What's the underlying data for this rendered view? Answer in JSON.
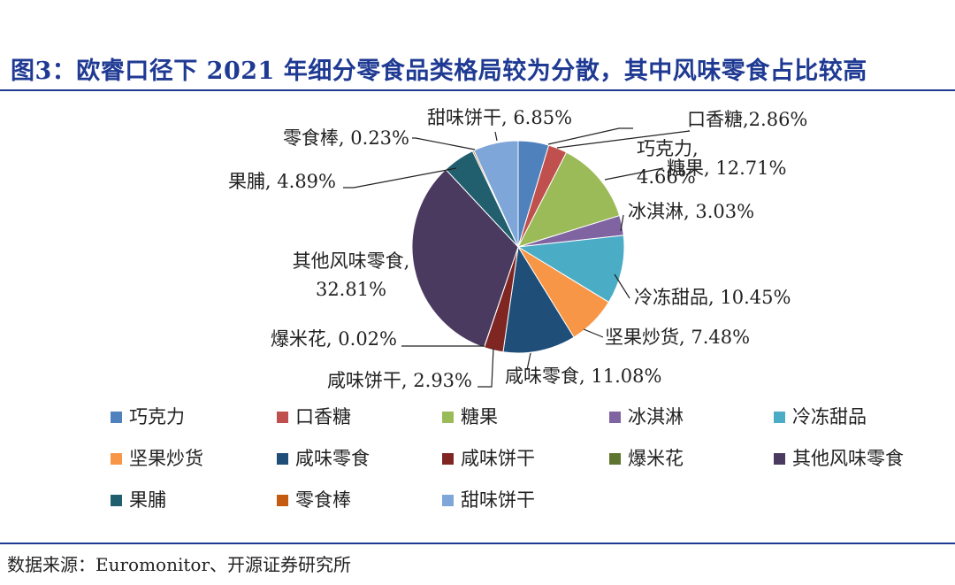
{
  "header": {
    "title": "图3：欧睿口径下 2021 年细分零食品类格局较为分散，其中风味零食占比较高"
  },
  "footer": {
    "source": "数据来源：Euromonitor、开源证券研究所"
  },
  "chart_data": {
    "type": "pie",
    "categories": [
      "巧克力",
      "口香糖",
      "糖果",
      "冰淇淋",
      "冷冻甜品",
      "坚果炒货",
      "咸味零食",
      "咸味饼干",
      "爆米花",
      "其他风味零食",
      "果脯",
      "零食棒",
      "甜味饼干"
    ],
    "values": [
      4.66,
      2.86,
      12.71,
      3.03,
      10.45,
      7.48,
      11.08,
      2.93,
      0.02,
      32.81,
      4.89,
      0.23,
      6.85
    ],
    "unit": "%",
    "colors": [
      "#4f81bd",
      "#c0504d",
      "#9bbb59",
      "#8064a2",
      "#4bacc6",
      "#f79646",
      "#1f4e79",
      "#7f2623",
      "#5e7530",
      "#4b3a5f",
      "#215f6e",
      "#c55a11",
      "#7ea6d8"
    ],
    "data_labels": [
      [
        "巧克力,",
        "4.66%"
      ],
      [
        "口香糖,2.86%"
      ],
      [
        "糖果, 12.71%"
      ],
      [
        "冰淇淋, 3.03%"
      ],
      [
        "冷冻甜品, 10.45%"
      ],
      [
        "坚果炒货, 7.48%"
      ],
      [
        "咸味零食, 11.08%"
      ],
      [
        "咸味饼干, 2.93%"
      ],
      [
        "爆米花, 0.02%"
      ],
      [
        "其他风味零食,",
        "32.81%"
      ],
      [
        "果脯, 4.89%"
      ],
      [
        "零食棒, 0.23%"
      ],
      [
        "甜味饼干, 6.85%"
      ]
    ],
    "legend_position": "bottom",
    "legend_entries": [
      "巧克力",
      "口香糖",
      "糖果",
      "冰淇淋",
      "冷冻甜品",
      "坚果炒货",
      "咸味零食",
      "咸味饼干",
      "爆米花",
      "其他风味零食",
      "果脯",
      "零食棒",
      "甜味饼干"
    ]
  }
}
